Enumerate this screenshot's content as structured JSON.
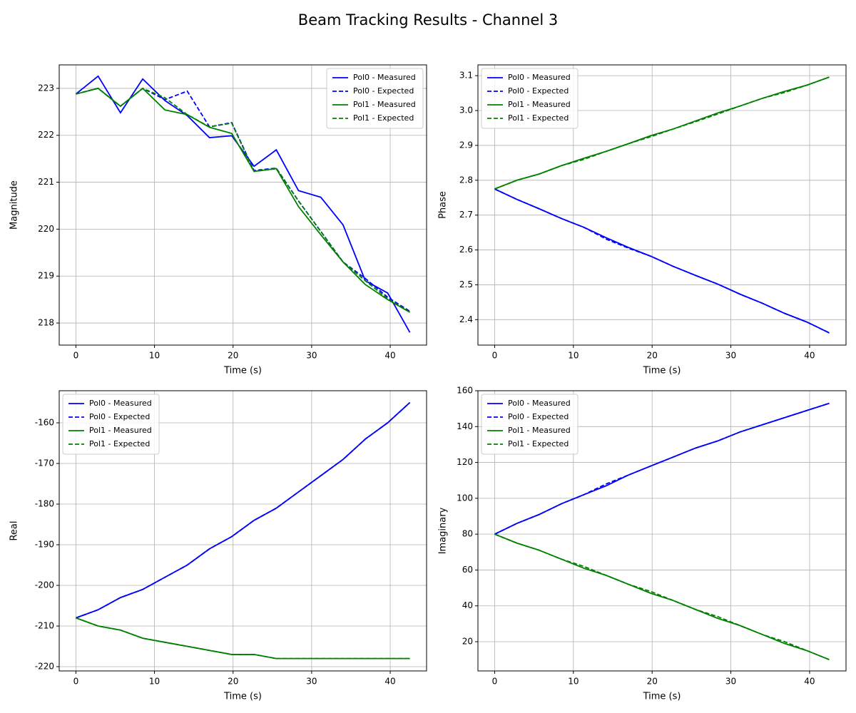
{
  "title": "Beam Tracking Results - Channel 3",
  "chart_data": [
    {
      "type": "line",
      "xlabel": "Time (s)",
      "ylabel": "Magnitude",
      "x": [
        0,
        2.83,
        5.67,
        8.5,
        11.33,
        14.17,
        17,
        19.83,
        22.67,
        25.5,
        28.33,
        31.17,
        34,
        36.83,
        39.67,
        42.5
      ],
      "xlim": [
        -2.125,
        44.625
      ],
      "xticks": [
        0,
        10,
        20,
        30,
        40
      ],
      "ylim": [
        217.53,
        223.5
      ],
      "yticks": [
        218,
        219,
        220,
        221,
        222,
        223
      ],
      "grid": true,
      "legend": "upper right",
      "series": [
        {
          "name": "Pol0 - Measured",
          "color": "#0000ff",
          "style": "solid",
          "values": [
            222.88,
            223.26,
            222.48,
            223.2,
            222.74,
            222.42,
            221.95,
            221.99,
            221.34,
            221.69,
            220.82,
            220.68,
            220.09,
            218.9,
            218.64,
            217.8
          ]
        },
        {
          "name": "Pol0 - Expected",
          "color": "#0000ff",
          "style": "dashed",
          "values": [
            222.88,
            223.0,
            222.62,
            223.0,
            222.76,
            222.94,
            222.18,
            222.27,
            221.25,
            221.3,
            220.6,
            219.95,
            219.3,
            218.95,
            218.55,
            218.25
          ]
        },
        {
          "name": "Pol1 - Measured",
          "color": "#008000",
          "style": "solid",
          "values": [
            222.88,
            223.0,
            222.62,
            223.0,
            222.54,
            222.44,
            222.17,
            222.04,
            221.23,
            221.29,
            220.48,
            219.88,
            219.3,
            218.82,
            218.5,
            218.23
          ]
        },
        {
          "name": "Pol1 - Expected",
          "color": "#008000",
          "style": "dashed",
          "values": [
            222.88,
            223.0,
            222.62,
            223.0,
            222.8,
            222.44,
            222.18,
            222.26,
            221.23,
            221.29,
            220.6,
            219.95,
            219.3,
            218.9,
            218.52,
            218.23
          ]
        }
      ]
    },
    {
      "type": "line",
      "xlabel": "Time (s)",
      "ylabel": "Phase",
      "x": [
        0,
        2.83,
        5.67,
        8.5,
        11.33,
        14.17,
        17,
        19.83,
        22.67,
        25.5,
        28.33,
        31.17,
        34,
        36.83,
        39.67,
        42.5
      ],
      "xlim": [
        -2.125,
        44.625
      ],
      "xticks": [
        0,
        10,
        20,
        30,
        40
      ],
      "ylim": [
        2.327,
        3.131
      ],
      "yticks": [
        2.4,
        2.5,
        2.6,
        2.7,
        2.8,
        2.9,
        {
          "value": 3,
          "label": "3.0"
        },
        3.1
      ],
      "grid": true,
      "legend": "upper left",
      "series": [
        {
          "name": "Pol0 - Measured",
          "color": "#0000ff",
          "style": "solid",
          "values": [
            2.775,
            2.745,
            2.718,
            2.69,
            2.665,
            2.635,
            2.607,
            2.582,
            2.553,
            2.527,
            2.502,
            2.473,
            2.447,
            2.418,
            2.393,
            2.362
          ]
        },
        {
          "name": "Pol0 - Expected",
          "color": "#0000ff",
          "style": "dashed",
          "values": [
            2.775,
            2.745,
            2.718,
            2.69,
            2.665,
            2.631,
            2.605,
            2.582,
            2.553,
            2.527,
            2.502,
            2.473,
            2.447,
            2.418,
            2.393,
            2.362
          ]
        },
        {
          "name": "Pol1 - Measured",
          "color": "#008000",
          "style": "solid",
          "values": [
            2.775,
            2.8,
            2.818,
            2.842,
            2.863,
            2.883,
            2.905,
            2.928,
            2.947,
            2.97,
            2.993,
            3.013,
            3.035,
            3.055,
            3.073,
            3.096
          ]
        },
        {
          "name": "Pol1 - Expected",
          "color": "#008000",
          "style": "dashed",
          "values": [
            2.775,
            2.8,
            2.818,
            2.842,
            2.86,
            2.883,
            2.905,
            2.925,
            2.947,
            2.968,
            2.99,
            3.013,
            3.035,
            3.052,
            3.073,
            3.096
          ]
        }
      ]
    },
    {
      "type": "line",
      "xlabel": "Time (s)",
      "ylabel": "Real",
      "x": [
        0,
        2.83,
        5.67,
        8.5,
        11.33,
        14.17,
        17,
        19.83,
        22.67,
        25.5,
        28.33,
        31.17,
        34,
        36.83,
        39.67,
        42.5
      ],
      "xlim": [
        -2.125,
        44.625
      ],
      "xticks": [
        0,
        10,
        20,
        30,
        40
      ],
      "ylim": [
        -221.05,
        -152.1
      ],
      "yticks": [
        -220,
        -210,
        -200,
        -190,
        -180,
        -170,
        -160
      ],
      "grid": true,
      "legend": "upper left",
      "series": [
        {
          "name": "Pol0 - Measured",
          "color": "#0000ff",
          "style": "solid",
          "values": [
            -208,
            -206,
            -203,
            -201,
            -198,
            -195,
            -191,
            -188,
            -184,
            -181,
            -177,
            -173,
            -169,
            -164,
            -160,
            -155
          ]
        },
        {
          "name": "Pol0 - Expected",
          "color": "#0000ff",
          "style": "dashed",
          "values": [
            -208,
            -206,
            -203,
            -201,
            -198,
            -195,
            -191,
            -188,
            -184,
            -181,
            -177,
            -173,
            -169,
            -164,
            -160,
            -155
          ]
        },
        {
          "name": "Pol1 - Measured",
          "color": "#008000",
          "style": "solid",
          "values": [
            -208,
            -210,
            -211,
            -213,
            -214,
            -215,
            -216,
            -217,
            -217,
            -218,
            -218,
            -218,
            -218,
            -218,
            -218,
            -218
          ]
        },
        {
          "name": "Pol1 - Expected",
          "color": "#008000",
          "style": "dashed",
          "values": [
            -208,
            -210,
            -211,
            -213,
            -214,
            -215,
            -216,
            -217,
            -217,
            -218,
            -218,
            -218,
            -218,
            -218,
            -218,
            -218
          ]
        }
      ]
    },
    {
      "type": "line",
      "xlabel": "Time (s)",
      "ylabel": "Imaginary",
      "x": [
        0,
        2.83,
        5.67,
        8.5,
        11.33,
        14.17,
        17,
        19.83,
        22.67,
        25.5,
        28.33,
        31.17,
        34,
        36.83,
        39.67,
        42.5
      ],
      "xlim": [
        -2.125,
        44.625
      ],
      "xticks": [
        0,
        10,
        20,
        30,
        40
      ],
      "ylim": [
        3.7,
        160
      ],
      "yticks": [
        20,
        40,
        60,
        80,
        100,
        120,
        140,
        160
      ],
      "grid": true,
      "legend": "upper left",
      "series": [
        {
          "name": "Pol0 - Measured",
          "color": "#0000ff",
          "style": "solid",
          "values": [
            80,
            86,
            91,
            97,
            102,
            107,
            113,
            118,
            123,
            128,
            132,
            137,
            141,
            145,
            149,
            153
          ]
        },
        {
          "name": "Pol0 - Expected",
          "color": "#0000ff",
          "style": "dashed",
          "values": [
            80,
            86,
            91,
            97,
            102,
            108,
            113,
            118,
            123,
            128,
            132,
            137,
            141,
            145,
            149,
            153
          ]
        },
        {
          "name": "Pol1 - Measured",
          "color": "#008000",
          "style": "solid",
          "values": [
            80,
            75,
            71,
            66,
            61,
            57,
            52,
            47,
            43,
            38,
            33,
            29,
            24,
            19,
            15,
            10
          ]
        },
        {
          "name": "Pol1 - Expected",
          "color": "#008000",
          "style": "dashed",
          "values": [
            80,
            75,
            71,
            66,
            62,
            57,
            52,
            48,
            43,
            38,
            34,
            29,
            24,
            20,
            15,
            10
          ]
        }
      ]
    }
  ]
}
